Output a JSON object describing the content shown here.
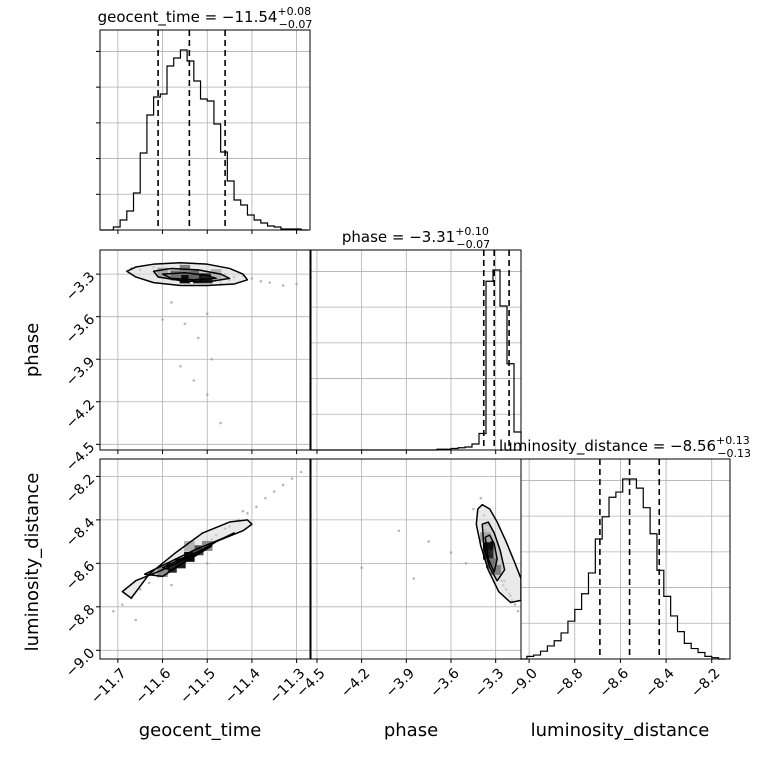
{
  "chart_data": {
    "type": "corner",
    "parameters": [
      "geocent_time",
      "phase",
      "luminosity_distance"
    ],
    "grid": true,
    "titles": [
      {
        "parameter": "geocent_time",
        "prefix": "geocent_time = ",
        "median": "−11.54",
        "plus": "+0.08",
        "minus": "−0.07"
      },
      {
        "parameter": "phase",
        "prefix": "phase = ",
        "median": "−3.31",
        "plus": "+0.10",
        "minus": "−0.07"
      },
      {
        "parameter": "luminosity_distance",
        "prefix": "luminosity_distance = ",
        "median": "−8.56",
        "plus": "+0.13",
        "minus": "−0.13"
      }
    ],
    "axis_labels": {
      "geocent_time": "geocent_time",
      "phase": "phase",
      "luminosity_distance": "luminosity_distance"
    },
    "axis_ranges": {
      "geocent_time": [
        -11.74,
        -11.27
      ],
      "phase": [
        -4.54,
        -3.13
      ],
      "luminosity_distance": [
        -9.04,
        -8.12
      ]
    },
    "ticks": {
      "geocent_time": [
        -11.7,
        -11.6,
        -11.5,
        -11.4,
        -11.3
      ],
      "phase": [
        -4.5,
        -4.2,
        -3.9,
        -3.6,
        -3.3
      ],
      "luminosity_distance": [
        -9.0,
        -8.8,
        -8.6,
        -8.4,
        -8.2
      ]
    },
    "tick_labels": {
      "geocent_time": [
        "−11.7",
        "−11.6",
        "−11.5",
        "−11.4",
        "−11.3"
      ],
      "phase": [
        "−4.5",
        "−4.2",
        "−3.9",
        "−3.6",
        "−3.3"
      ],
      "luminosity_distance": [
        "−9.0",
        "−8.8",
        "−8.6",
        "−8.4",
        "−8.2"
      ]
    },
    "quantiles": {
      "geocent_time": [
        -11.61,
        -11.54,
        -11.46
      ],
      "phase": [
        -3.38,
        -3.31,
        -3.21
      ],
      "luminosity_distance": [
        -8.69,
        -8.56,
        -8.43
      ]
    },
    "histograms": {
      "geocent_time": {
        "edges": [
          -11.74,
          -11.725,
          -11.71,
          -11.695,
          -11.68,
          -11.665,
          -11.65,
          -11.635,
          -11.62,
          -11.605,
          -11.59,
          -11.575,
          -11.56,
          -11.545,
          -11.53,
          -11.515,
          -11.5,
          -11.485,
          -11.47,
          -11.455,
          -11.44,
          -11.425,
          -11.41,
          -11.395,
          -11.38,
          -11.365,
          -11.35,
          -11.335,
          -11.32,
          -11.305,
          -11.29,
          -11.275
        ],
        "counts": [
          0,
          0,
          3,
          10,
          19,
          37,
          77,
          115,
          133,
          136,
          164,
          172,
          180,
          169,
          149,
          131,
          129,
          106,
          78,
          49,
          30,
          25,
          15,
          10,
          7,
          4,
          3,
          1,
          1,
          1,
          0
        ]
      },
      "phase": {
        "edges": [
          -4.54,
          -4.493,
          -4.446,
          -4.399,
          -4.352,
          -4.305,
          -4.258,
          -4.211,
          -4.164,
          -4.117,
          -4.07,
          -4.023,
          -3.976,
          -3.929,
          -3.882,
          -3.835,
          -3.788,
          -3.741,
          -3.694,
          -3.647,
          -3.6,
          -3.553,
          -3.506,
          -3.459,
          -3.412,
          -3.365,
          -3.318,
          -3.271,
          -3.224,
          -3.177,
          -3.13
        ],
        "counts": [
          0,
          0,
          0,
          0,
          0,
          0,
          0,
          0,
          0,
          0,
          0,
          0,
          0,
          0,
          0,
          0,
          0,
          0,
          1,
          1,
          2,
          3,
          4,
          8,
          22,
          225,
          240,
          192,
          115,
          24
        ]
      },
      "luminosity_distance": {
        "edges": [
          -9.04,
          -9.01,
          -8.98,
          -8.95,
          -8.92,
          -8.89,
          -8.86,
          -8.83,
          -8.8,
          -8.77,
          -8.74,
          -8.71,
          -8.68,
          -8.65,
          -8.62,
          -8.59,
          -8.56,
          -8.53,
          -8.5,
          -8.47,
          -8.44,
          -8.41,
          -8.38,
          -8.35,
          -8.32,
          -8.29,
          -8.26,
          -8.23,
          -8.2,
          -8.17,
          -8.14
        ],
        "counts": [
          0,
          2,
          3,
          6,
          10,
          14,
          20,
          29,
          38,
          50,
          66,
          92,
          109,
          124,
          128,
          138,
          138,
          131,
          116,
          96,
          68,
          48,
          33,
          21,
          12,
          8,
          5,
          2,
          1,
          0
        ]
      }
    },
    "scatter_samples": {
      "phase_vs_geocent_time": {
        "geocent_time": [
          -11.67,
          -11.65,
          -11.62,
          -11.6,
          -11.59,
          -11.58,
          -11.57,
          -11.56,
          -11.55,
          -11.54,
          -11.53,
          -11.52,
          -11.51,
          -11.5,
          -11.49,
          -11.48,
          -11.47,
          -11.46,
          -11.45,
          -11.44,
          -11.42,
          -11.4,
          -11.38,
          -11.36,
          -11.33,
          -11.3,
          -11.58,
          -11.55,
          -11.52,
          -11.5,
          -11.56,
          -11.53,
          -11.49,
          -11.47,
          -11.6,
          -11.5
        ],
        "phase": [
          -3.26,
          -3.27,
          -3.25,
          -3.29,
          -3.31,
          -3.27,
          -3.33,
          -3.3,
          -3.34,
          -3.28,
          -3.32,
          -3.3,
          -3.35,
          -3.29,
          -3.33,
          -3.31,
          -3.36,
          -3.3,
          -3.34,
          -3.32,
          -3.31,
          -3.33,
          -3.35,
          -3.36,
          -3.38,
          -3.37,
          -3.5,
          -3.65,
          -3.75,
          -3.58,
          -3.95,
          -4.05,
          -3.9,
          -4.35,
          -3.62,
          -4.15
        ]
      },
      "luminosity_distance_vs_geocent_time": {
        "geocent_time": [
          -11.71,
          -11.69,
          -11.67,
          -11.65,
          -11.63,
          -11.61,
          -11.6,
          -11.59,
          -11.57,
          -11.56,
          -11.55,
          -11.54,
          -11.53,
          -11.52,
          -11.51,
          -11.5,
          -11.49,
          -11.48,
          -11.46,
          -11.45,
          -11.43,
          -11.41,
          -11.39,
          -11.37,
          -11.35,
          -11.33,
          -11.31,
          -11.29,
          -11.66,
          -11.58,
          -11.5,
          -11.42
        ],
        "luminosity_distance": [
          -8.82,
          -8.79,
          -8.76,
          -8.72,
          -8.69,
          -8.66,
          -8.64,
          -8.63,
          -8.61,
          -8.59,
          -8.58,
          -8.57,
          -8.55,
          -8.54,
          -8.52,
          -8.5,
          -8.49,
          -8.47,
          -8.44,
          -8.43,
          -8.4,
          -8.37,
          -8.34,
          -8.3,
          -8.27,
          -8.24,
          -8.21,
          -8.18,
          -8.86,
          -8.7,
          -8.6,
          -8.36
        ]
      },
      "luminosity_distance_vs_phase": {
        "phase": [
          -3.4,
          -3.38,
          -3.36,
          -3.35,
          -3.34,
          -3.33,
          -3.32,
          -3.31,
          -3.3,
          -3.29,
          -3.28,
          -3.27,
          -3.26,
          -3.25,
          -3.23,
          -3.21,
          -3.19,
          -3.17,
          -3.15,
          -3.37,
          -3.3,
          -3.24,
          -3.2,
          -3.6,
          -3.75,
          -3.95,
          -4.2,
          -3.5,
          -3.85,
          -3.45
        ],
        "luminosity_distance": [
          -8.3,
          -8.38,
          -8.42,
          -8.47,
          -8.5,
          -8.53,
          -8.55,
          -8.57,
          -8.6,
          -8.62,
          -8.64,
          -8.66,
          -8.68,
          -8.7,
          -8.72,
          -8.74,
          -8.77,
          -8.79,
          -8.82,
          -8.45,
          -8.58,
          -8.68,
          -8.75,
          -8.55,
          -8.5,
          -8.45,
          -8.62,
          -8.6,
          -8.67,
          -8.35
        ]
      }
    },
    "density_cells": {
      "phase_vs_geocent_time": [
        {
          "x": -11.55,
          "y": -3.33,
          "level": 0.95
        },
        {
          "x": -11.52,
          "y": -3.33,
          "level": 0.9
        },
        {
          "x": -11.5,
          "y": -3.33,
          "level": 0.85
        },
        {
          "x": -11.57,
          "y": -3.31,
          "level": 0.55
        },
        {
          "x": -11.53,
          "y": -3.31,
          "level": 0.6
        },
        {
          "x": -11.6,
          "y": -3.29,
          "level": 0.35
        },
        {
          "x": -11.55,
          "y": -3.27,
          "level": 0.5
        },
        {
          "x": -11.48,
          "y": -3.3,
          "level": 0.3
        }
      ],
      "luminosity_distance_vs_geocent_time": [
        {
          "x": -11.58,
          "y": -8.62,
          "level": 0.85
        },
        {
          "x": -11.56,
          "y": -8.6,
          "level": 0.9
        },
        {
          "x": -11.54,
          "y": -8.57,
          "level": 0.95
        },
        {
          "x": -11.52,
          "y": -8.54,
          "level": 0.7
        },
        {
          "x": -11.6,
          "y": -8.64,
          "level": 0.45
        },
        {
          "x": -11.5,
          "y": -8.52,
          "level": 0.45
        },
        {
          "x": -11.54,
          "y": -8.52,
          "level": 0.3
        }
      ],
      "luminosity_distance_vs_phase": [
        {
          "x": -3.35,
          "y": -8.52,
          "level": 0.95
        },
        {
          "x": -3.35,
          "y": -8.56,
          "level": 0.85
        },
        {
          "x": -3.33,
          "y": -8.6,
          "level": 0.55
        },
        {
          "x": -3.3,
          "y": -8.63,
          "level": 0.5
        },
        {
          "x": -3.37,
          "y": -8.48,
          "level": 0.35
        }
      ]
    },
    "contours": {
      "phase_vs_geocent_time": [
        {
          "x": [
            -11.68,
            -11.66,
            -11.62,
            -11.56,
            -11.5,
            -11.45,
            -11.42,
            -11.41,
            -11.44,
            -11.5,
            -11.56,
            -11.62,
            -11.66,
            -11.68
          ],
          "y": [
            -3.28,
            -3.25,
            -3.23,
            -3.22,
            -3.23,
            -3.26,
            -3.3,
            -3.34,
            -3.37,
            -3.38,
            -3.38,
            -3.36,
            -3.32,
            -3.28
          ]
        },
        {
          "x": [
            -11.62,
            -11.58,
            -11.52,
            -11.47,
            -11.45,
            -11.49,
            -11.55,
            -11.61,
            -11.62
          ],
          "y": [
            -3.28,
            -3.26,
            -3.27,
            -3.3,
            -3.33,
            -3.35,
            -3.35,
            -3.32,
            -3.28
          ]
        },
        {
          "x": [
            -11.6,
            -11.55,
            -11.5,
            -11.48,
            -11.53,
            -11.58,
            -11.6
          ],
          "y": [
            -3.3,
            -3.29,
            -3.31,
            -3.33,
            -3.34,
            -3.33,
            -3.3
          ]
        }
      ],
      "luminosity_distance_vs_geocent_time": [
        {
          "x": [
            -11.69,
            -11.66,
            -11.6,
            -11.54,
            -11.48,
            -11.42,
            -11.4,
            -11.41,
            -11.45,
            -11.51,
            -11.57,
            -11.63,
            -11.67,
            -11.69
          ],
          "y": [
            -8.73,
            -8.68,
            -8.63,
            -8.57,
            -8.5,
            -8.45,
            -8.42,
            -8.4,
            -8.41,
            -8.46,
            -8.55,
            -8.65,
            -8.76,
            -8.73
          ]
        },
        {
          "x": [
            -11.64,
            -11.59,
            -11.53,
            -11.46,
            -11.44,
            -11.48,
            -11.54,
            -11.6,
            -11.64
          ],
          "y": [
            -8.65,
            -8.6,
            -8.54,
            -8.48,
            -8.46,
            -8.5,
            -8.58,
            -8.66,
            -8.65
          ]
        },
        {
          "x": [
            -11.6,
            -11.56,
            -11.5,
            -11.49,
            -11.53,
            -11.58,
            -11.6
          ],
          "y": [
            -8.62,
            -8.58,
            -8.53,
            -8.52,
            -8.57,
            -8.63,
            -8.62
          ]
        }
      ],
      "luminosity_distance_vs_phase": [
        {
          "x": [
            -3.42,
            -3.39,
            -3.34,
            -3.29,
            -3.23,
            -3.17,
            -3.13,
            -3.13,
            -3.2,
            -3.28,
            -3.35,
            -3.4,
            -3.43,
            -3.42
          ],
          "y": [
            -8.35,
            -8.33,
            -8.35,
            -8.41,
            -8.5,
            -8.6,
            -8.67,
            -8.77,
            -8.78,
            -8.73,
            -8.63,
            -8.52,
            -8.42,
            -8.35
          ]
        },
        {
          "x": [
            -3.39,
            -3.35,
            -3.31,
            -3.27,
            -3.24,
            -3.29,
            -3.34,
            -3.38,
            -3.39
          ],
          "y": [
            -8.42,
            -8.41,
            -8.46,
            -8.54,
            -8.63,
            -8.68,
            -8.62,
            -8.52,
            -8.42
          ]
        },
        {
          "x": [
            -3.37,
            -3.34,
            -3.31,
            -3.29,
            -3.31,
            -3.35,
            -3.37
          ],
          "y": [
            -8.48,
            -8.47,
            -8.51,
            -8.58,
            -8.64,
            -8.58,
            -8.48
          ]
        }
      ]
    }
  }
}
